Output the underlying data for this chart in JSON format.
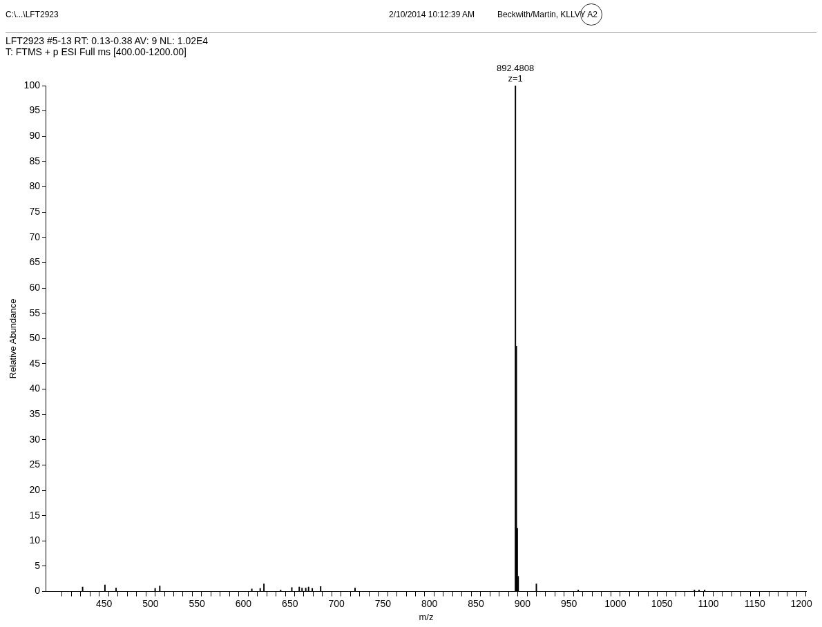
{
  "chart_data": {
    "type": "bar",
    "title": "LFT2923 #5-13  RT: 0.13-0.38  AV: 9  NL: 1.02E4",
    "subtitle": "T: FTMS + p ESI Full ms [400.00-1200.00]",
    "xlabel": "m/z",
    "ylabel": "Relative Abundance",
    "annotations": [
      "C:\\...\\LFT2923",
      "2/10/2014 10:12:39 AM",
      "Beckwith/Martin, KLLVY A2",
      {
        "text": "892.4808\nz=1",
        "x": 892.4808,
        "y": 100
      }
    ],
    "x": [
      427,
      451,
      463,
      505,
      510,
      609,
      618,
      622,
      640,
      652,
      660,
      663,
      667,
      670,
      674,
      683,
      720,
      892.4808,
      893.48,
      894.48,
      895.48,
      915,
      960,
      1085,
      1090,
      1096
    ],
    "values": [
      0.9,
      1.3,
      0.7,
      0.6,
      1.1,
      0.5,
      0.6,
      1.5,
      0.3,
      0.8,
      0.9,
      0.7,
      0.7,
      0.9,
      0.6,
      1.0,
      0.7,
      100,
      48.5,
      12.5,
      3,
      1.5,
      0.3,
      0.3,
      0.3,
      0.3
    ],
    "color": "#000000",
    "xlim": [
      393,
      1200
    ],
    "xticks": [
      {
        "value": 410,
        "label": null
      },
      {
        "value": 420,
        "label": null
      },
      {
        "value": 430,
        "label": null
      },
      {
        "value": 440,
        "label": null
      },
      450,
      {
        "value": 460,
        "label": null
      },
      {
        "value": 470,
        "label": null
      },
      {
        "value": 480,
        "label": null
      },
      {
        "value": 490,
        "label": null
      },
      500,
      {
        "value": 510,
        "label": null
      },
      {
        "value": 520,
        "label": null
      },
      {
        "value": 530,
        "label": null
      },
      {
        "value": 540,
        "label": null
      },
      550,
      {
        "value": 560,
        "label": null
      },
      {
        "value": 570,
        "label": null
      },
      {
        "value": 580,
        "label": null
      },
      {
        "value": 590,
        "label": null
      },
      600,
      {
        "value": 610,
        "label": null
      },
      {
        "value": 620,
        "label": null
      },
      {
        "value": 630,
        "label": null
      },
      {
        "value": 640,
        "label": null
      },
      650,
      {
        "value": 660,
        "label": null
      },
      {
        "value": 670,
        "label": null
      },
      {
        "value": 680,
        "label": null
      },
      {
        "value": 690,
        "label": null
      },
      700,
      {
        "value": 710,
        "label": null
      },
      {
        "value": 720,
        "label": null
      },
      {
        "value": 730,
        "label": null
      },
      {
        "value": 740,
        "label": null
      },
      750,
      {
        "value": 760,
        "label": null
      },
      {
        "value": 770,
        "label": null
      },
      {
        "value": 780,
        "label": null
      },
      {
        "value": 790,
        "label": null
      },
      800,
      {
        "value": 810,
        "label": null
      },
      {
        "value": 820,
        "label": null
      },
      {
        "value": 830,
        "label": null
      },
      {
        "value": 840,
        "label": null
      },
      850,
      {
        "value": 860,
        "label": null
      },
      {
        "value": 870,
        "label": null
      },
      {
        "value": 880,
        "label": null
      },
      {
        "value": 890,
        "label": null
      },
      900,
      {
        "value": 910,
        "label": null
      },
      {
        "value": 920,
        "label": null
      },
      {
        "value": 930,
        "label": null
      },
      {
        "value": 940,
        "label": null
      },
      950,
      {
        "value": 960,
        "label": null
      },
      {
        "value": 970,
        "label": null
      },
      {
        "value": 980,
        "label": null
      },
      {
        "value": 990,
        "label": null
      },
      1000,
      {
        "value": 1010,
        "label": null
      },
      {
        "value": 1020,
        "label": null
      },
      {
        "value": 1030,
        "label": null
      },
      {
        "value": 1040,
        "label": null
      },
      1050,
      {
        "value": 1060,
        "label": null
      },
      {
        "value": 1070,
        "label": null
      },
      {
        "value": 1080,
        "label": null
      },
      {
        "value": 1090,
        "label": null
      },
      1100,
      {
        "value": 1110,
        "label": null
      },
      {
        "value": 1120,
        "label": null
      },
      {
        "value": 1130,
        "label": null
      },
      {
        "value": 1140,
        "label": null
      },
      1150,
      {
        "value": 1160,
        "label": null
      },
      {
        "value": 1170,
        "label": null
      },
      {
        "value": 1180,
        "label": null
      },
      {
        "value": 1190,
        "label": null
      },
      1200
    ],
    "ylim": [
      0,
      100
    ],
    "yticks": [
      0,
      5,
      10,
      15,
      20,
      25,
      30,
      35,
      40,
      45,
      50,
      55,
      60,
      65,
      70,
      75,
      80,
      85,
      90,
      95,
      100
    ],
    "grid": false,
    "legend": false
  }
}
